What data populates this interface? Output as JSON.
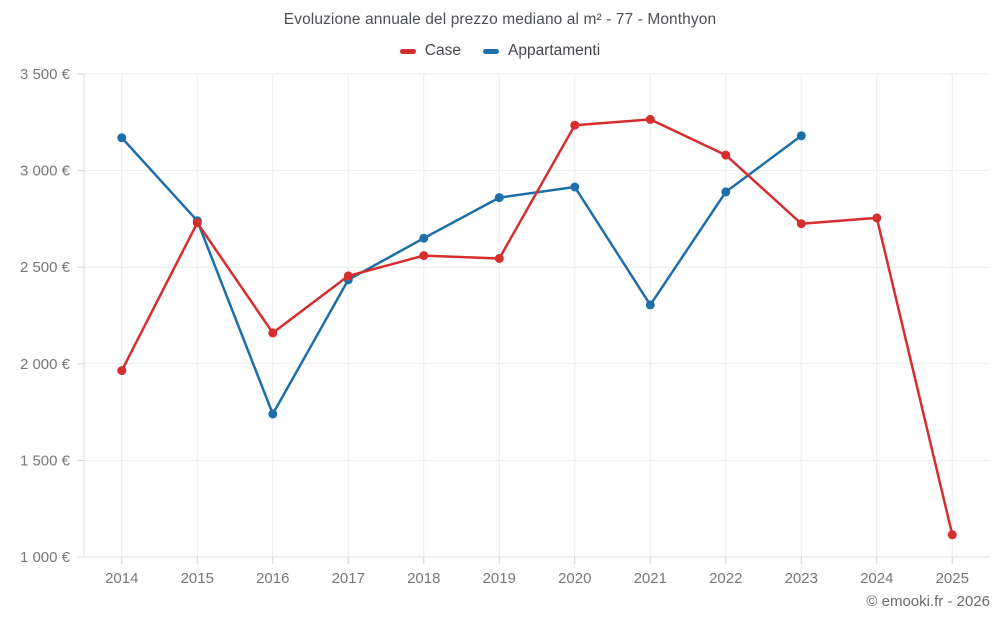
{
  "chart": {
    "title": "Evoluzione annuale del prezzo mediano al m² - 77 - Monthyon",
    "footer": "© emooki.fr - 2026"
  },
  "chart_data": {
    "type": "line",
    "title": "Evoluzione annuale del prezzo mediano al m² - 77 - Monthyon",
    "categories": [
      "2014",
      "2015",
      "2016",
      "2017",
      "2018",
      "2019",
      "2020",
      "2021",
      "2022",
      "2023",
      "2024",
      "2025"
    ],
    "series": [
      {
        "name": "Case",
        "color": "#d62e2e",
        "values": [
          1965,
          2730,
          2160,
          2455,
          2560,
          2545,
          3235,
          3265,
          3080,
          2725,
          2755,
          1115
        ]
      },
      {
        "name": "Appartamenti",
        "color": "#1d6fa8",
        "values": [
          3170,
          2740,
          1740,
          2435,
          2650,
          2860,
          2915,
          2305,
          2890,
          3180,
          null,
          null
        ]
      }
    ],
    "ylim": [
      1000,
      3500
    ],
    "ytick_step": 500,
    "ytick_labels": [
      "1 000 €",
      "1 500 €",
      "2 000 €",
      "2 500 €",
      "3 000 €",
      "3 500 €"
    ],
    "xlabel": "",
    "ylabel": "",
    "grid": true,
    "legend_position": "top",
    "colors": {
      "gridline": "#ebebeb",
      "axis_line": "#dcdcdc",
      "tick": "#d2d2d2",
      "axis_text": "#75787b"
    }
  }
}
